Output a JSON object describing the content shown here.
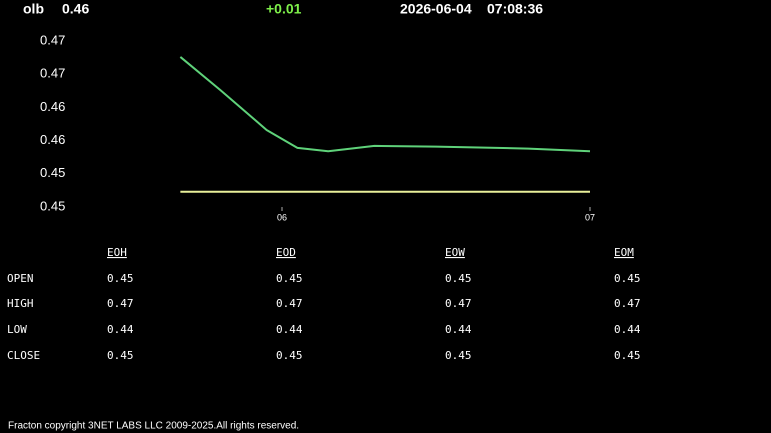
{
  "header": {
    "symbol": "olb",
    "price": 0.46,
    "change": "+0.01",
    "date": "2026-06-04",
    "time": "07:08:36"
  },
  "chart_data": {
    "type": "line",
    "xlim": [
      5.6,
      7.05
    ],
    "xticks": [
      {
        "value": 6,
        "label": "06"
      },
      {
        "value": 7,
        "label": "07"
      }
    ],
    "ylim": [
      0.445,
      0.47
    ],
    "yticks": [
      {
        "value": 0.47,
        "label": "0.47"
      },
      {
        "value": 0.465,
        "label": "0.47"
      },
      {
        "value": 0.46,
        "label": "0.46"
      },
      {
        "value": 0.455,
        "label": "0.46"
      },
      {
        "value": 0.45,
        "label": "0.45"
      },
      {
        "value": 0.445,
        "label": "0.45"
      }
    ],
    "series": [
      {
        "color": "#5fd27a",
        "x": [
          5.67,
          5.8,
          5.95,
          6.05,
          6.15,
          6.3,
          6.5,
          6.8,
          7.0
        ],
        "values": [
          0.4676,
          0.4626,
          0.4566,
          0.4539,
          0.4534,
          0.4542,
          0.4541,
          0.4538,
          0.4534
        ]
      },
      {
        "color": "#e8ef9a",
        "x": [
          5.67,
          7.0
        ],
        "values": [
          0.4473,
          0.4473
        ]
      }
    ]
  },
  "table": {
    "columns": [
      "EOH",
      "EOD",
      "EOW",
      "EOM"
    ],
    "rows": [
      {
        "label": "OPEN",
        "values": [
          0.45,
          0.45,
          0.45,
          0.45
        ]
      },
      {
        "label": "HIGH",
        "values": [
          0.47,
          0.47,
          0.47,
          0.47
        ]
      },
      {
        "label": "LOW",
        "values": [
          0.44,
          0.44,
          0.44,
          0.44
        ]
      },
      {
        "label": "CLOSE",
        "values": [
          0.45,
          0.45,
          0.45,
          0.45
        ]
      }
    ]
  },
  "footer": "Fracton copyright 3NET LABS LLC 2009-2025.All rights reserved."
}
